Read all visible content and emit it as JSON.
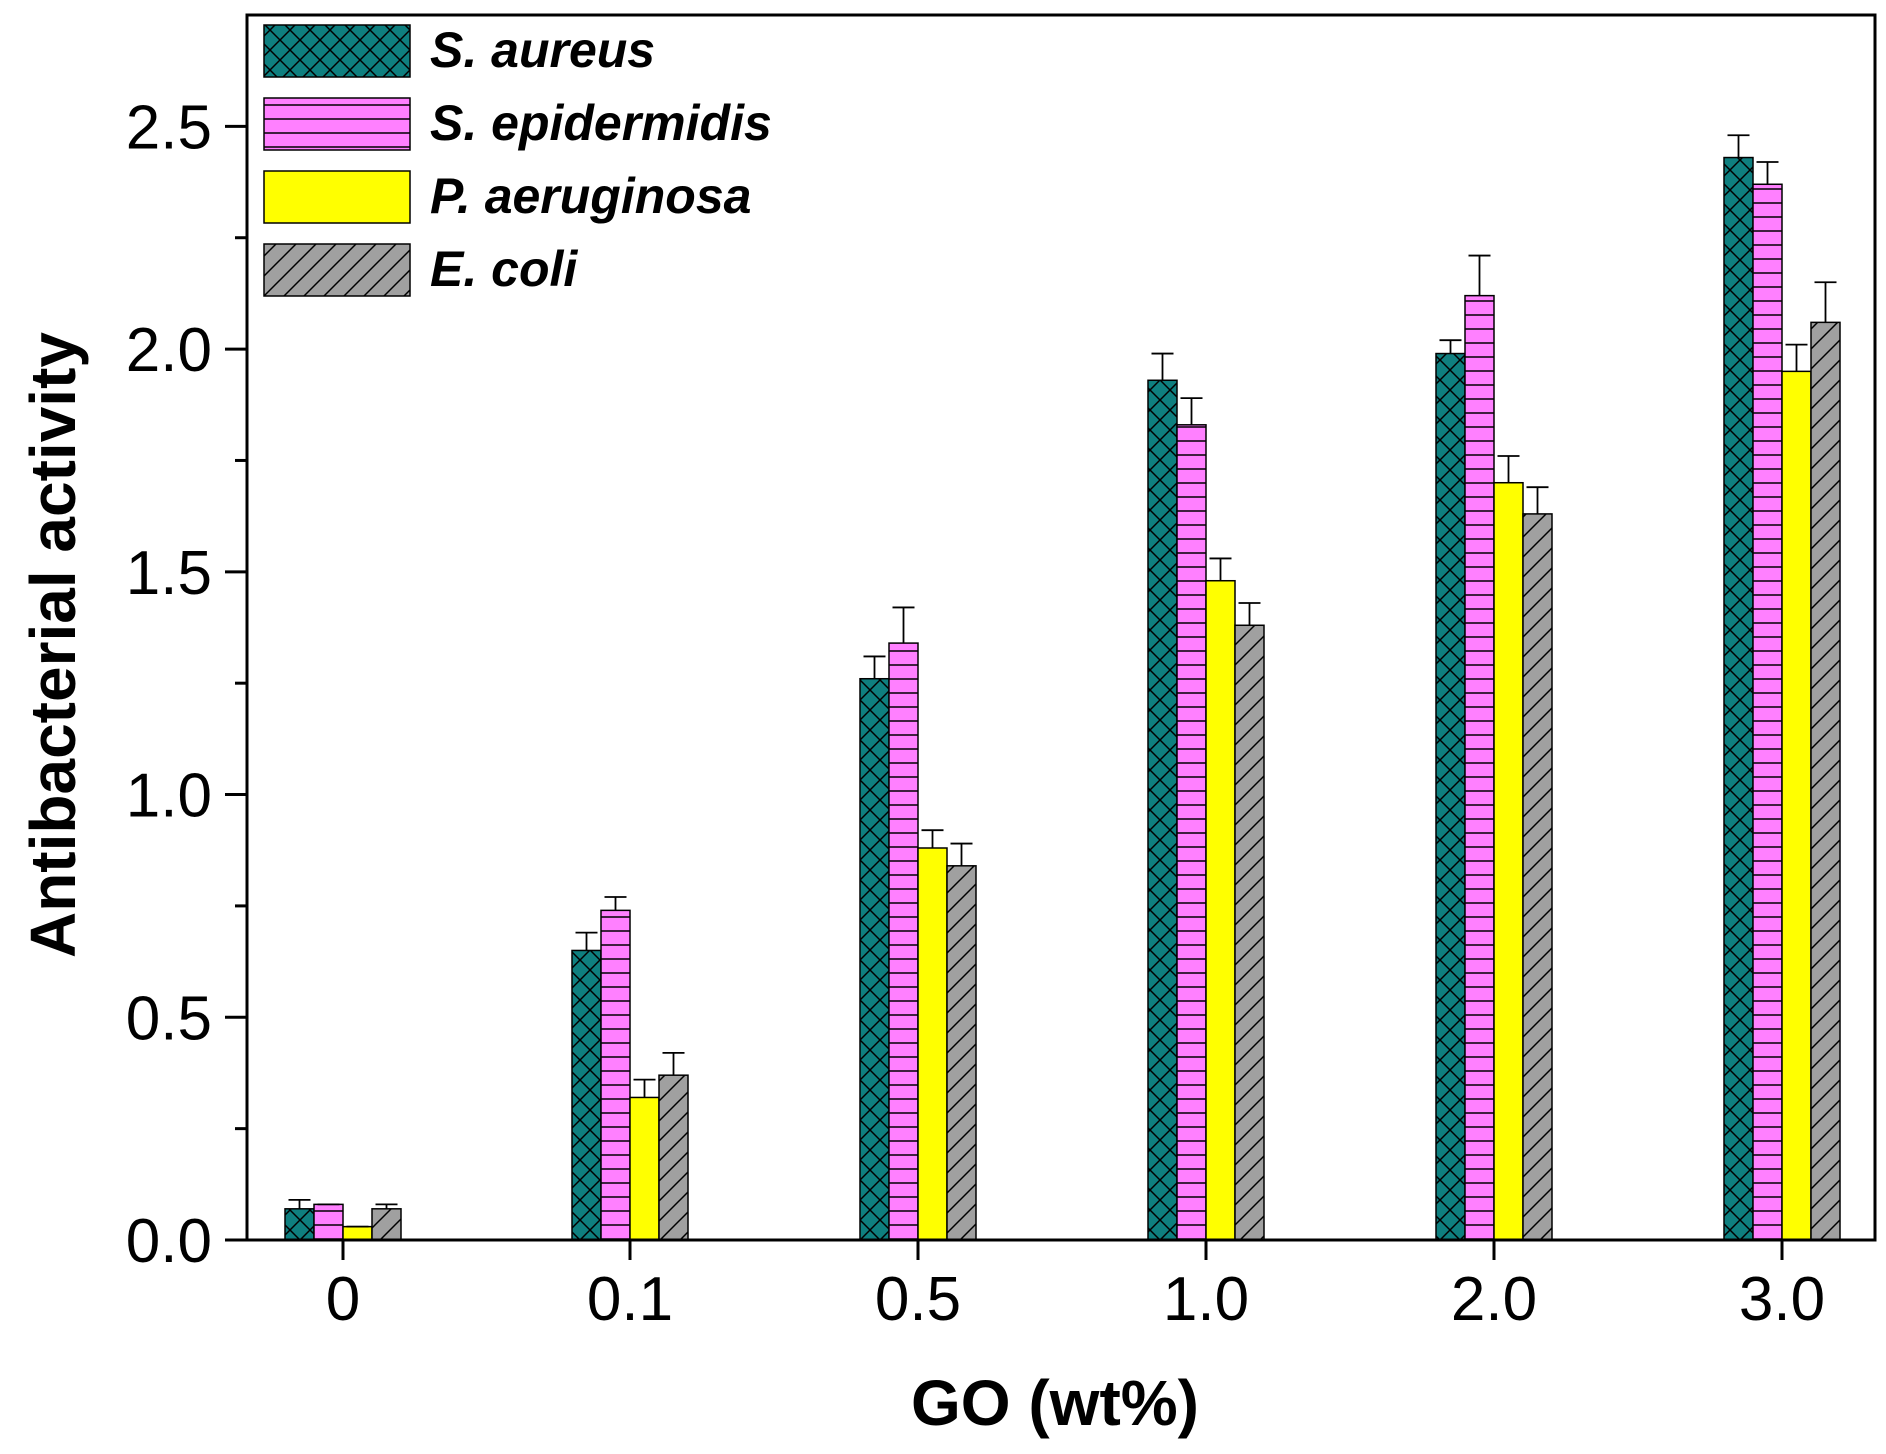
{
  "chart_data": {
    "type": "bar",
    "title": "",
    "xlabel": "GO (wt%)",
    "ylabel": "Antibacterial activity",
    "categories": [
      "0",
      "0.1",
      "0.5",
      "1.0",
      "2.0",
      "3.0"
    ],
    "ylim": [
      0,
      2.75
    ],
    "yticks": [
      0.0,
      0.5,
      1.0,
      1.5,
      2.0,
      2.5
    ],
    "ytick_labels": [
      "0.0",
      "0.5",
      "1.0",
      "1.5",
      "2.0",
      "2.5"
    ],
    "legend_position": "top-left",
    "grid": false,
    "error_bars": true,
    "series": [
      {
        "name": "S. aureus",
        "color": "#0f7f7f",
        "pattern": "crosshatch",
        "values": [
          0.07,
          0.65,
          1.26,
          1.93,
          1.99,
          2.43
        ],
        "errors": [
          0.02,
          0.04,
          0.05,
          0.06,
          0.03,
          0.05
        ]
      },
      {
        "name": "S. epidermidis",
        "color": "#ff80ff",
        "pattern": "horizontal-lines",
        "values": [
          0.08,
          0.74,
          1.34,
          1.83,
          2.12,
          2.37
        ],
        "errors": [
          0.0,
          0.03,
          0.08,
          0.06,
          0.09,
          0.05
        ]
      },
      {
        "name": "P. aeruginosa",
        "color": "#ffff00",
        "pattern": "solid",
        "values": [
          0.03,
          0.32,
          0.88,
          1.48,
          1.7,
          1.95
        ],
        "errors": [
          0.0,
          0.04,
          0.04,
          0.05,
          0.06,
          0.06
        ]
      },
      {
        "name": "E. coli",
        "color": "#a0a0a0",
        "pattern": "diagonal-lines",
        "values": [
          0.07,
          0.37,
          0.84,
          1.38,
          1.63,
          2.06
        ],
        "errors": [
          0.01,
          0.05,
          0.05,
          0.05,
          0.06,
          0.09
        ]
      }
    ]
  }
}
